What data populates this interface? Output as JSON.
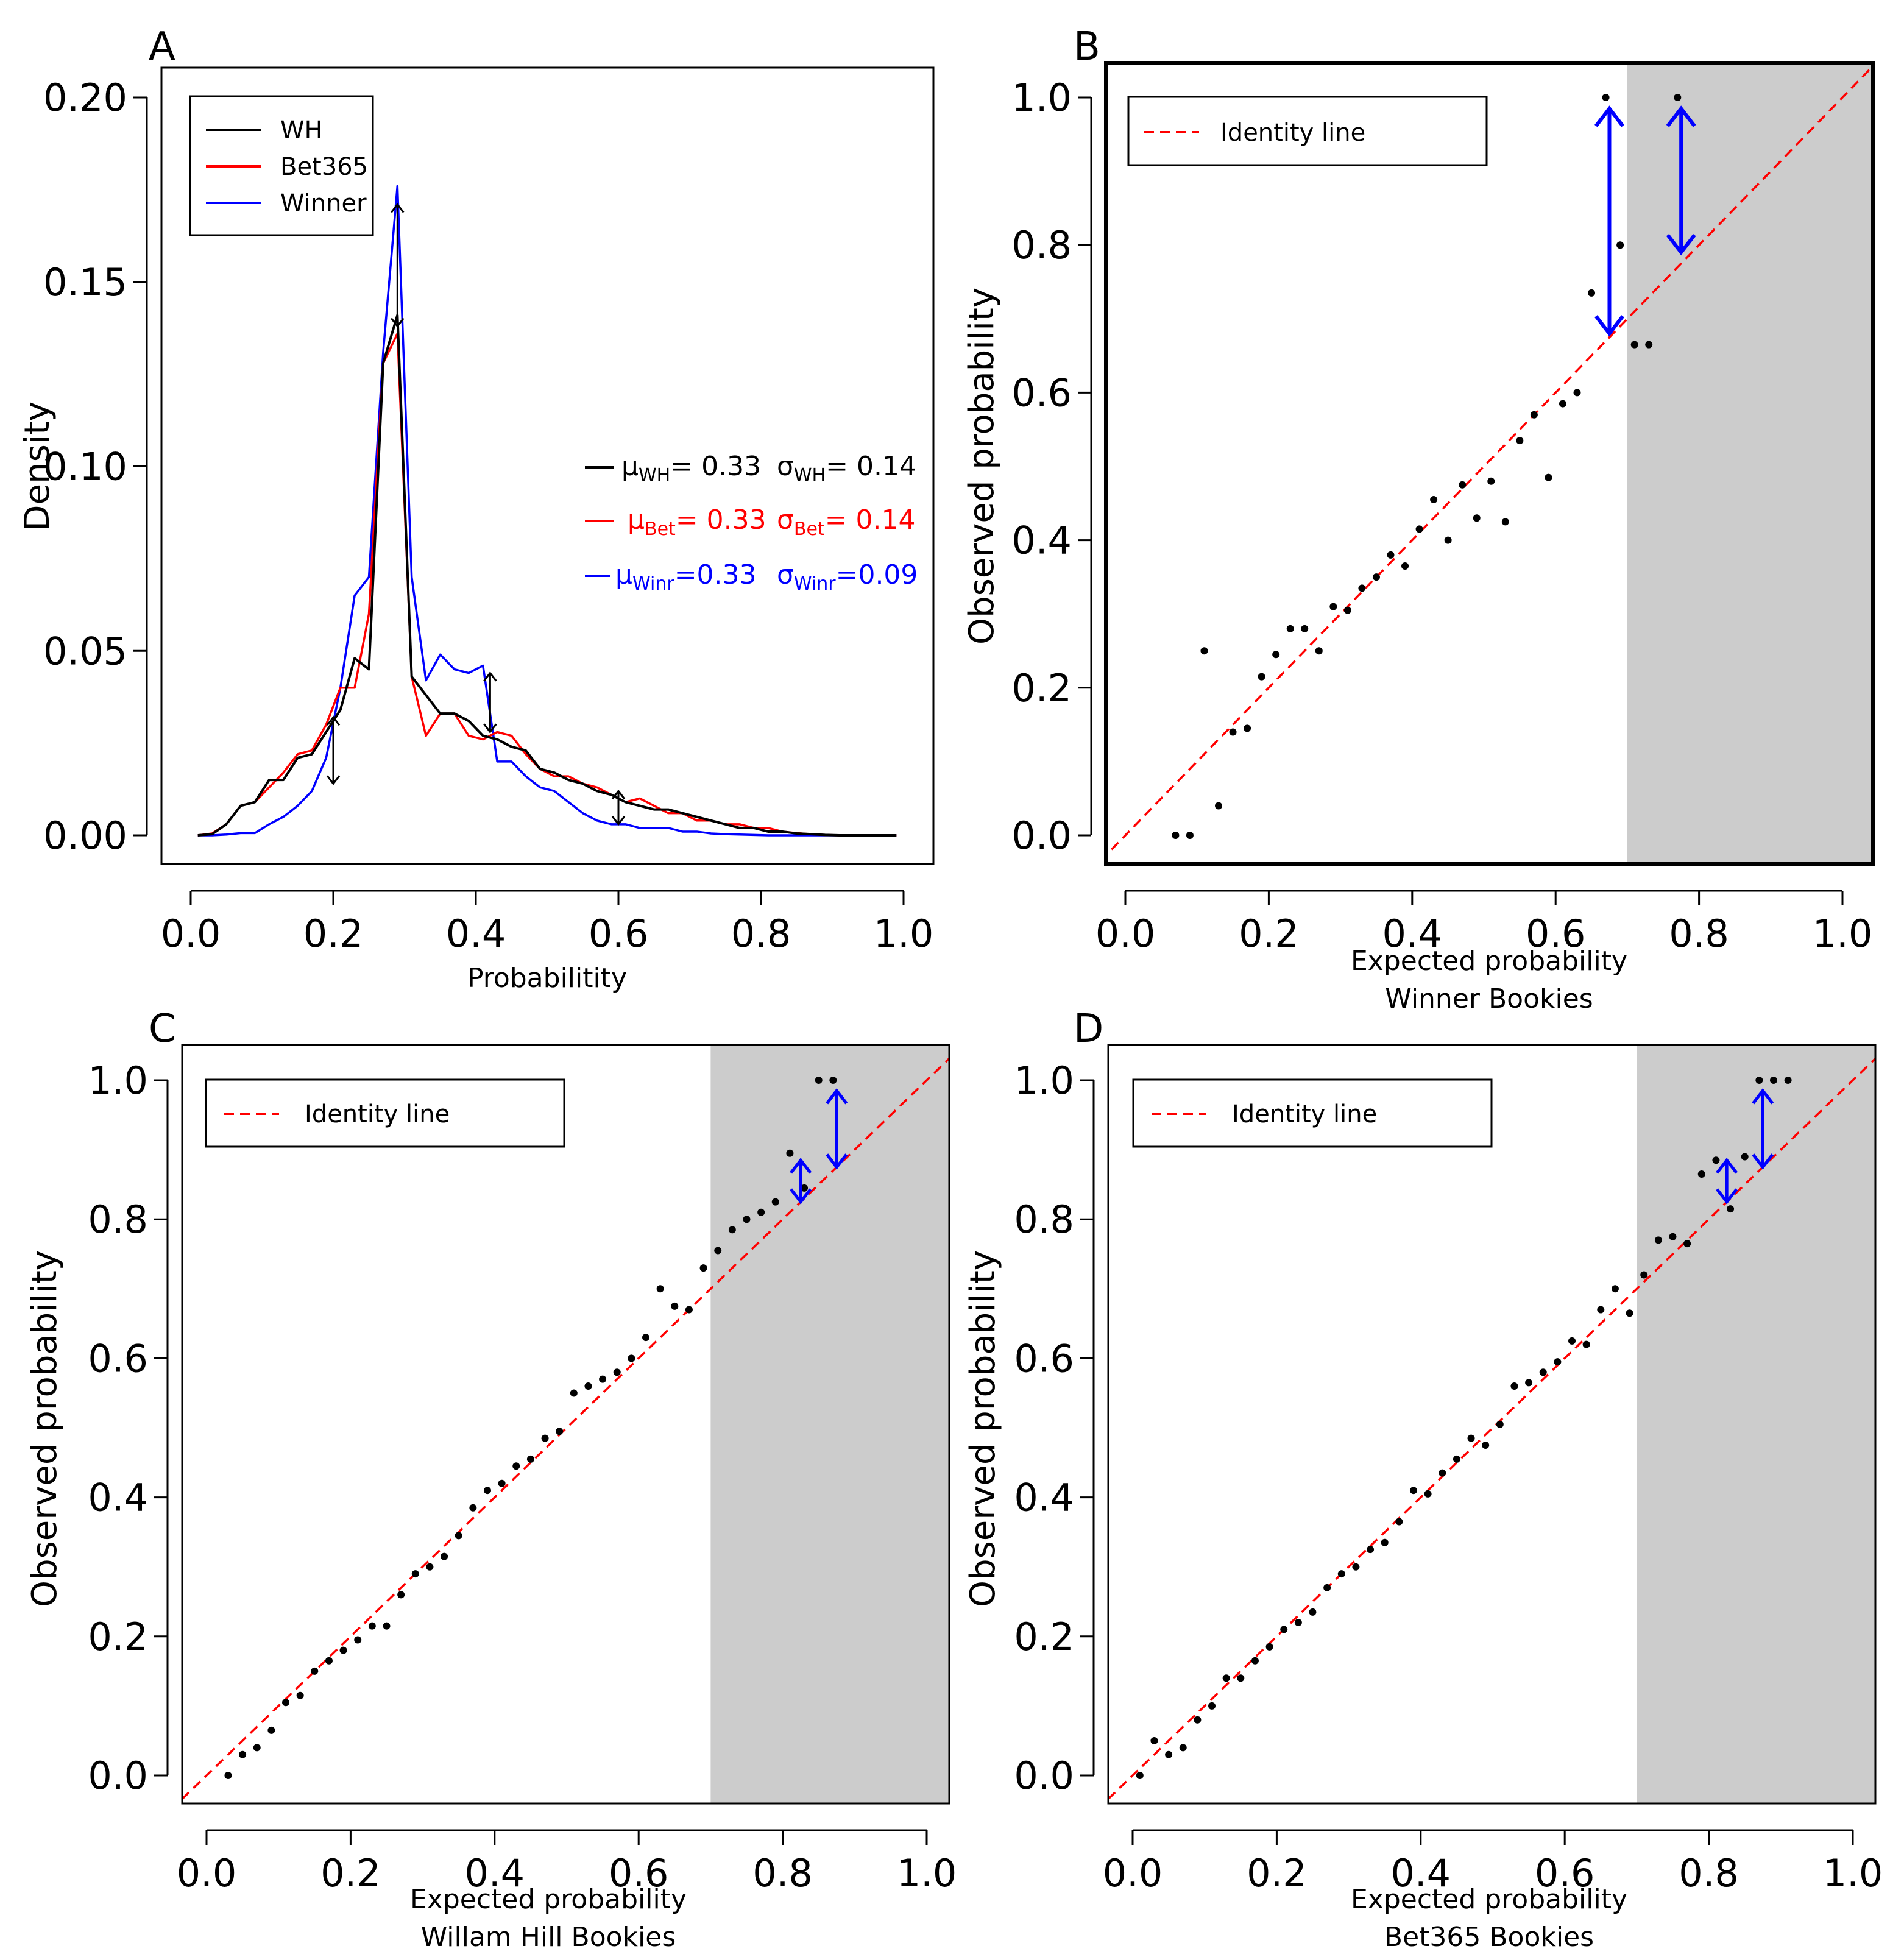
{
  "colors": {
    "wh": "#000000",
    "bet365": "#ff0000",
    "winner": "#0000ff",
    "identity": "#ff0000",
    "arrow": "#0000ff",
    "shade": "#cccccc",
    "point": "#000000"
  },
  "chart_data": [
    {
      "panel": "A",
      "type": "line",
      "title": "",
      "xlabel": "Probabilitity",
      "ylabel": "Density",
      "xlim": [
        0,
        1
      ],
      "ylim": [
        0,
        0.2
      ],
      "xticks": [
        0.0,
        0.2,
        0.4,
        0.6,
        0.8,
        1.0
      ],
      "xtick_labels": [
        "0.0",
        "0.2",
        "0.4",
        "0.6",
        "0.8",
        "1.0"
      ],
      "yticks": [
        0.0,
        0.05,
        0.1,
        0.15,
        0.2
      ],
      "ytick_labels": [
        "0.00",
        "0.05",
        "0.10",
        "0.15",
        "0.20"
      ],
      "legend": [
        "WH",
        "Bet365",
        "Winner"
      ],
      "x": [
        0.01,
        0.03,
        0.05,
        0.07,
        0.09,
        0.11,
        0.13,
        0.15,
        0.17,
        0.19,
        0.21,
        0.23,
        0.25,
        0.27,
        0.29,
        0.31,
        0.33,
        0.35,
        0.37,
        0.39,
        0.41,
        0.43,
        0.45,
        0.47,
        0.49,
        0.51,
        0.53,
        0.55,
        0.57,
        0.59,
        0.61,
        0.63,
        0.65,
        0.67,
        0.69,
        0.71,
        0.73,
        0.75,
        0.77,
        0.79,
        0.81,
        0.83,
        0.85,
        0.87,
        0.89,
        0.91,
        0.93,
        0.95,
        0.97,
        0.99
      ],
      "series": [
        {
          "name": "WH",
          "values": [
            0.0,
            0.0003,
            0.003,
            0.008,
            0.009,
            0.015,
            0.015,
            0.021,
            0.022,
            0.028,
            0.034,
            0.048,
            0.045,
            0.128,
            0.141,
            0.043,
            0.038,
            0.033,
            0.033,
            0.031,
            0.027,
            0.026,
            0.024,
            0.023,
            0.018,
            0.017,
            0.015,
            0.014,
            0.012,
            0.011,
            0.009,
            0.008,
            0.007,
            0.007,
            0.006,
            0.005,
            0.004,
            0.003,
            0.002,
            0.002,
            0.001,
            0.001,
            0.0005,
            0.0003,
            0.0001,
            0.0,
            0.0,
            0.0,
            0.0,
            0.0
          ]
        },
        {
          "name": "Bet365",
          "values": [
            0.0,
            0.0005,
            0.003,
            0.008,
            0.009,
            0.013,
            0.017,
            0.022,
            0.023,
            0.03,
            0.04,
            0.04,
            0.06,
            0.128,
            0.136,
            0.043,
            0.027,
            0.033,
            0.033,
            0.027,
            0.026,
            0.028,
            0.027,
            0.022,
            0.018,
            0.016,
            0.016,
            0.014,
            0.013,
            0.011,
            0.009,
            0.01,
            0.008,
            0.006,
            0.006,
            0.004,
            0.004,
            0.003,
            0.003,
            0.002,
            0.002,
            0.001,
            0.0006,
            0.0003,
            0.0001,
            0.0,
            0.0,
            0.0,
            0.0,
            0.0
          ]
        },
        {
          "name": "Winner",
          "values": [
            0.0,
            0.0,
            0.0002,
            0.0006,
            0.0006,
            0.003,
            0.005,
            0.008,
            0.012,
            0.021,
            0.04,
            0.065,
            0.07,
            0.131,
            0.176,
            0.07,
            0.042,
            0.049,
            0.045,
            0.044,
            0.046,
            0.02,
            0.02,
            0.016,
            0.013,
            0.012,
            0.009,
            0.006,
            0.004,
            0.003,
            0.003,
            0.002,
            0.002,
            0.002,
            0.001,
            0.001,
            0.0005,
            0.0003,
            0.0002,
            0.0001,
            0.0,
            0.0,
            0.0,
            0.0,
            0.0,
            0.0,
            0.0,
            0.0,
            0.0,
            0.0
          ]
        }
      ],
      "arrows": [
        {
          "x": 0.2,
          "y1": 0.032,
          "y2": 0.014
        },
        {
          "x": 0.29,
          "y1": 0.171,
          "y2": 0.138
        },
        {
          "x": 0.42,
          "y1": 0.044,
          "y2": 0.028
        },
        {
          "x": 0.6,
          "y1": 0.012,
          "y2": 0.003
        }
      ],
      "stats": {
        "wh": {
          "mu_sym": "μ",
          "mu_sub": "WH",
          "mu_val": "= 0.33",
          "sigma_sym": "σ",
          "sigma_sub": "WH",
          "sigma_val": "= 0.14"
        },
        "bet": {
          "mu_sym": "μ",
          "mu_sub": "Bet",
          "mu_val": "= 0.33",
          "sigma_sym": "σ",
          "sigma_sub": "Bet",
          "sigma_val": "= 0.14"
        },
        "winr": {
          "mu_sym": "μ",
          "mu_sub": "Winr",
          "mu_val": "=0.33",
          "sigma_sym": "σ",
          "sigma_sub": "Winr",
          "sigma_val": "=0.09"
        }
      }
    },
    {
      "panel": "B",
      "type": "scatter",
      "xlabel": "Expected probability",
      "xlabel2": "Winner Bookies",
      "ylabel": "Observed probability",
      "xlim": [
        0,
        1
      ],
      "ylim": [
        0,
        1
      ],
      "xticks": [
        0.0,
        0.2,
        0.4,
        0.6,
        0.8,
        1.0
      ],
      "xtick_labels": [
        "0.0",
        "0.2",
        "0.4",
        "0.6",
        "0.8",
        "1.0"
      ],
      "yticks": [
        0.0,
        0.2,
        0.4,
        0.6,
        0.8,
        1.0
      ],
      "ytick_labels": [
        "0.0",
        "0.2",
        "0.4",
        "0.6",
        "0.8",
        "1.0"
      ],
      "legend": [
        "Identity line"
      ],
      "shaded_from": 0.7,
      "points": [
        [
          0.07,
          0.0
        ],
        [
          0.09,
          0.0
        ],
        [
          0.11,
          0.25
        ],
        [
          0.13,
          0.04
        ],
        [
          0.15,
          0.14
        ],
        [
          0.17,
          0.145
        ],
        [
          0.19,
          0.215
        ],
        [
          0.21,
          0.245
        ],
        [
          0.23,
          0.28
        ],
        [
          0.25,
          0.28
        ],
        [
          0.27,
          0.25
        ],
        [
          0.29,
          0.31
        ],
        [
          0.31,
          0.305
        ],
        [
          0.33,
          0.335
        ],
        [
          0.35,
          0.35
        ],
        [
          0.37,
          0.38
        ],
        [
          0.39,
          0.365
        ],
        [
          0.41,
          0.415
        ],
        [
          0.43,
          0.455
        ],
        [
          0.45,
          0.4
        ],
        [
          0.47,
          0.475
        ],
        [
          0.49,
          0.43
        ],
        [
          0.51,
          0.48
        ],
        [
          0.53,
          0.425
        ],
        [
          0.55,
          0.535
        ],
        [
          0.57,
          0.57
        ],
        [
          0.59,
          0.485
        ],
        [
          0.61,
          0.585
        ],
        [
          0.63,
          0.6
        ],
        [
          0.65,
          0.735
        ],
        [
          0.67,
          1.0
        ],
        [
          0.69,
          0.8
        ],
        [
          0.71,
          0.665
        ],
        [
          0.73,
          0.665
        ],
        [
          0.77,
          1.0
        ]
      ],
      "arrows": [
        {
          "x": 0.675,
          "y1": 0.985,
          "y2": 0.68
        },
        {
          "x": 0.775,
          "y1": 0.985,
          "y2": 0.79
        }
      ]
    },
    {
      "panel": "C",
      "type": "scatter",
      "xlabel": "Expected probability",
      "xlabel2": "Willam Hill Bookies",
      "ylabel": "Observed probability",
      "xlim": [
        0,
        1
      ],
      "ylim": [
        0,
        1
      ],
      "xticks": [
        0.0,
        0.2,
        0.4,
        0.6,
        0.8,
        1.0
      ],
      "xtick_labels": [
        "0.0",
        "0.2",
        "0.4",
        "0.6",
        "0.8",
        "1.0"
      ],
      "yticks": [
        0.0,
        0.2,
        0.4,
        0.6,
        0.8,
        1.0
      ],
      "ytick_labels": [
        "0.0",
        "0.2",
        "0.4",
        "0.6",
        "0.8",
        "1.0"
      ],
      "legend": [
        "Identity line"
      ],
      "shaded_from": 0.7,
      "points": [
        [
          0.03,
          0.0
        ],
        [
          0.05,
          0.03
        ],
        [
          0.07,
          0.04
        ],
        [
          0.09,
          0.065
        ],
        [
          0.11,
          0.105
        ],
        [
          0.13,
          0.115
        ],
        [
          0.15,
          0.15
        ],
        [
          0.17,
          0.165
        ],
        [
          0.19,
          0.18
        ],
        [
          0.21,
          0.195
        ],
        [
          0.23,
          0.215
        ],
        [
          0.25,
          0.215
        ],
        [
          0.27,
          0.26
        ],
        [
          0.29,
          0.29
        ],
        [
          0.31,
          0.3
        ],
        [
          0.33,
          0.315
        ],
        [
          0.35,
          0.345
        ],
        [
          0.37,
          0.385
        ],
        [
          0.39,
          0.41
        ],
        [
          0.41,
          0.42
        ],
        [
          0.43,
          0.445
        ],
        [
          0.45,
          0.455
        ],
        [
          0.47,
          0.485
        ],
        [
          0.49,
          0.495
        ],
        [
          0.51,
          0.55
        ],
        [
          0.53,
          0.56
        ],
        [
          0.55,
          0.57
        ],
        [
          0.57,
          0.58
        ],
        [
          0.59,
          0.6
        ],
        [
          0.61,
          0.63
        ],
        [
          0.63,
          0.7
        ],
        [
          0.65,
          0.675
        ],
        [
          0.67,
          0.67
        ],
        [
          0.69,
          0.73
        ],
        [
          0.71,
          0.755
        ],
        [
          0.73,
          0.785
        ],
        [
          0.75,
          0.8
        ],
        [
          0.77,
          0.81
        ],
        [
          0.79,
          0.825
        ],
        [
          0.81,
          0.895
        ],
        [
          0.83,
          0.845
        ],
        [
          0.85,
          1.0
        ],
        [
          0.87,
          1.0
        ]
      ],
      "arrows": [
        {
          "x": 0.825,
          "y1": 0.885,
          "y2": 0.825
        },
        {
          "x": 0.875,
          "y1": 0.985,
          "y2": 0.875
        }
      ]
    },
    {
      "panel": "D",
      "type": "scatter",
      "xlabel": "Expected probability",
      "xlabel2": "Bet365 Bookies",
      "ylabel": "Observed probability",
      "xlim": [
        0,
        1
      ],
      "ylim": [
        0,
        1
      ],
      "xticks": [
        0.0,
        0.2,
        0.4,
        0.6,
        0.8,
        1.0
      ],
      "xtick_labels": [
        "0.0",
        "0.2",
        "0.4",
        "0.6",
        "0.8",
        "1.0"
      ],
      "yticks": [
        0.0,
        0.2,
        0.4,
        0.6,
        0.8,
        1.0
      ],
      "ytick_labels": [
        "0.0",
        "0.2",
        "0.4",
        "0.6",
        "0.8",
        "1.0"
      ],
      "legend": [
        "Identity line"
      ],
      "shaded_from": 0.7,
      "points": [
        [
          0.01,
          0.0
        ],
        [
          0.03,
          0.05
        ],
        [
          0.05,
          0.03
        ],
        [
          0.07,
          0.04
        ],
        [
          0.09,
          0.08
        ],
        [
          0.11,
          0.1
        ],
        [
          0.13,
          0.14
        ],
        [
          0.15,
          0.14
        ],
        [
          0.17,
          0.165
        ],
        [
          0.19,
          0.185
        ],
        [
          0.21,
          0.21
        ],
        [
          0.23,
          0.22
        ],
        [
          0.25,
          0.235
        ],
        [
          0.27,
          0.27
        ],
        [
          0.29,
          0.29
        ],
        [
          0.31,
          0.3
        ],
        [
          0.33,
          0.325
        ],
        [
          0.35,
          0.335
        ],
        [
          0.37,
          0.365
        ],
        [
          0.39,
          0.41
        ],
        [
          0.41,
          0.405
        ],
        [
          0.43,
          0.435
        ],
        [
          0.45,
          0.455
        ],
        [
          0.47,
          0.485
        ],
        [
          0.49,
          0.475
        ],
        [
          0.51,
          0.505
        ],
        [
          0.53,
          0.56
        ],
        [
          0.55,
          0.565
        ],
        [
          0.57,
          0.58
        ],
        [
          0.59,
          0.595
        ],
        [
          0.61,
          0.625
        ],
        [
          0.63,
          0.62
        ],
        [
          0.65,
          0.67
        ],
        [
          0.67,
          0.7
        ],
        [
          0.69,
          0.665
        ],
        [
          0.71,
          0.72
        ],
        [
          0.73,
          0.77
        ],
        [
          0.75,
          0.775
        ],
        [
          0.77,
          0.765
        ],
        [
          0.79,
          0.865
        ],
        [
          0.81,
          0.885
        ],
        [
          0.83,
          0.815
        ],
        [
          0.85,
          0.89
        ],
        [
          0.87,
          1.0
        ],
        [
          0.89,
          1.0
        ],
        [
          0.91,
          1.0
        ]
      ],
      "arrows": [
        {
          "x": 0.825,
          "y1": 0.885,
          "y2": 0.825
        },
        {
          "x": 0.875,
          "y1": 0.985,
          "y2": 0.875
        }
      ]
    }
  ]
}
